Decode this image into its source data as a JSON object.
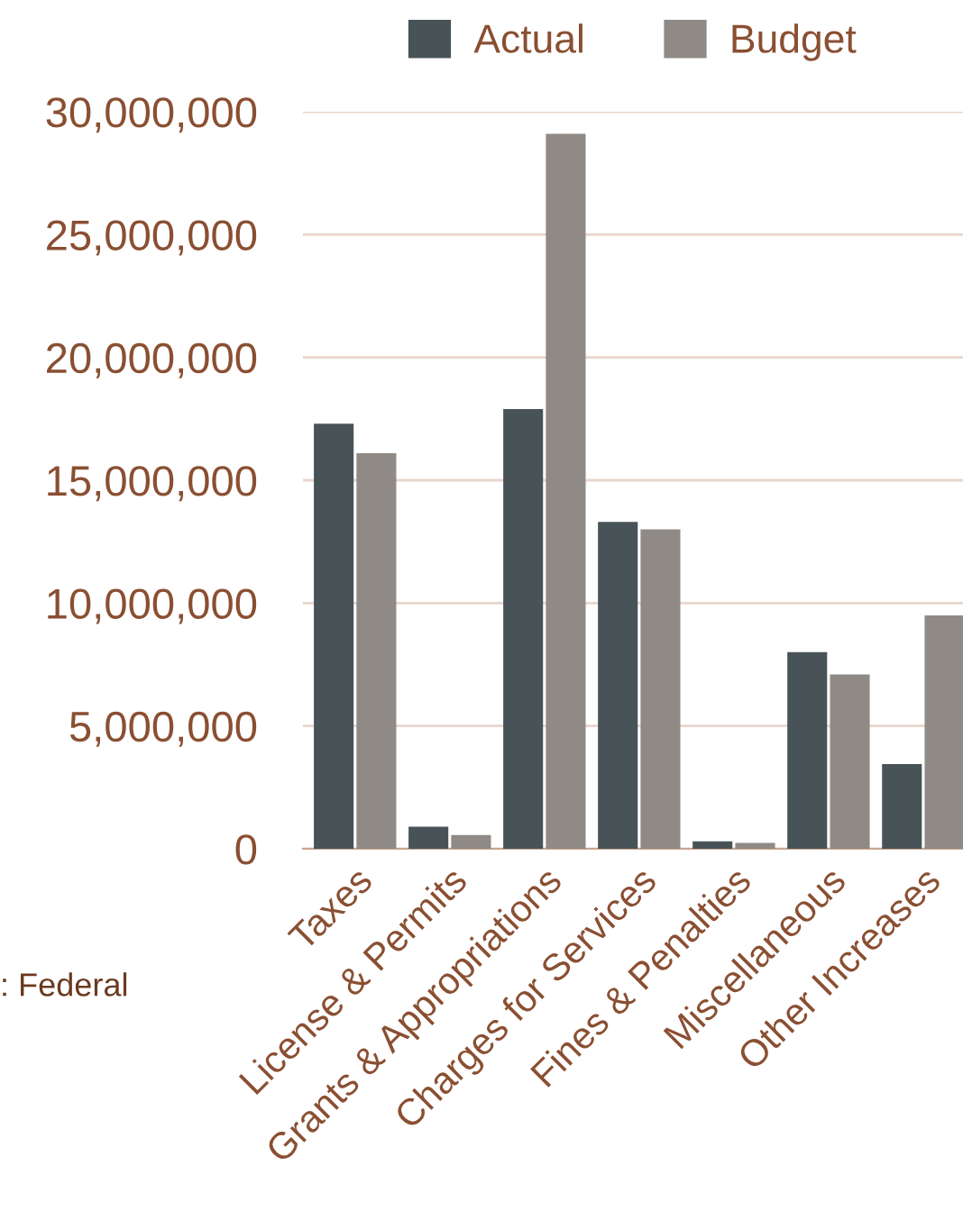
{
  "chart_data": {
    "type": "bar",
    "categories": [
      "Taxes",
      "License & Permits",
      "Grants & Appropriations",
      "Charges for Services",
      "Fines & Penalties",
      "Miscellaneous",
      "Other Increases"
    ],
    "series": [
      {
        "name": "Actual",
        "color": "#485358",
        "values": [
          17300000,
          900000,
          17900000,
          13300000,
          300000,
          8000000,
          3450000
        ]
      },
      {
        "name": "Budget",
        "color": "#8f8a85",
        "values": [
          16100000,
          560000,
          29100000,
          13000000,
          240000,
          7100000,
          9500000
        ]
      }
    ],
    "ylim": [
      0,
      30000000
    ],
    "yticks": [
      {
        "value": 0,
        "label": "0"
      },
      {
        "value": 5000000,
        "label": "5,000,000"
      },
      {
        "value": 10000000,
        "label": "10,000,000"
      },
      {
        "value": 15000000,
        "label": "15,000,000"
      },
      {
        "value": 20000000,
        "label": "20,000,000"
      },
      {
        "value": 25000000,
        "label": "25,000,000"
      },
      {
        "value": 30000000,
        "label": "30,000,000"
      }
    ],
    "grid": "y",
    "legend": "top",
    "annotations": [
      ": Federal"
    ]
  }
}
